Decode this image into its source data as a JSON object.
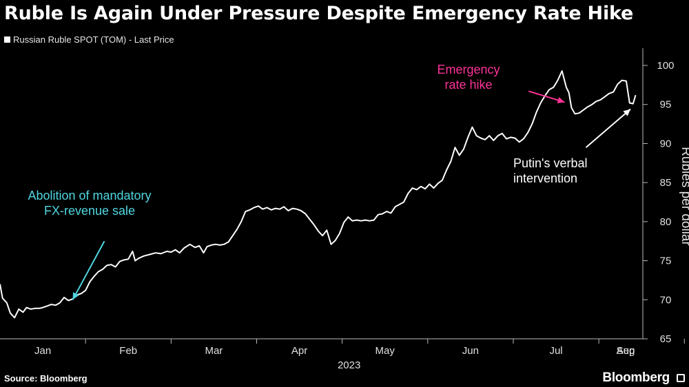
{
  "chart_data": {
    "type": "line",
    "title": "Ruble Is Again Under Pressure Despite Emergency Rate Hike",
    "series": [
      {
        "name": "Russian Ruble SPOT (TOM) - Last Price",
        "color": "#ffffff",
        "points": [
          [
            0.0,
            72.0
          ],
          [
            0.03,
            70.2
          ],
          [
            0.08,
            69.6
          ],
          [
            0.12,
            68.3
          ],
          [
            0.17,
            67.7
          ],
          [
            0.22,
            68.8
          ],
          [
            0.27,
            68.4
          ],
          [
            0.31,
            69.0
          ],
          [
            0.36,
            68.8
          ],
          [
            0.41,
            68.9
          ],
          [
            0.46,
            68.9
          ],
          [
            0.5,
            69.0
          ],
          [
            0.55,
            69.2
          ],
          [
            0.6,
            69.4
          ],
          [
            0.65,
            69.3
          ],
          [
            0.7,
            69.6
          ],
          [
            0.75,
            70.3
          ],
          [
            0.8,
            69.9
          ],
          [
            0.85,
            70.1
          ],
          [
            0.9,
            70.6
          ],
          [
            0.95,
            70.8
          ],
          [
            1.0,
            71.2
          ],
          [
            1.05,
            72.3
          ],
          [
            1.1,
            73.0
          ],
          [
            1.15,
            73.6
          ],
          [
            1.2,
            73.9
          ],
          [
            1.25,
            74.4
          ],
          [
            1.3,
            74.5
          ],
          [
            1.35,
            74.2
          ],
          [
            1.4,
            74.9
          ],
          [
            1.45,
            75.1
          ],
          [
            1.5,
            75.2
          ],
          [
            1.55,
            76.2
          ],
          [
            1.58,
            75.0
          ],
          [
            1.62,
            75.3
          ],
          [
            1.68,
            75.6
          ],
          [
            1.75,
            75.8
          ],
          [
            1.82,
            76.0
          ],
          [
            1.88,
            75.9
          ],
          [
            1.95,
            76.2
          ],
          [
            2.0,
            76.1
          ],
          [
            2.05,
            76.4
          ],
          [
            2.1,
            76.0
          ],
          [
            2.15,
            76.6
          ],
          [
            2.22,
            77.1
          ],
          [
            2.28,
            76.7
          ],
          [
            2.33,
            76.9
          ],
          [
            2.38,
            76.0
          ],
          [
            2.42,
            76.8
          ],
          [
            2.47,
            77.0
          ],
          [
            2.52,
            77.1
          ],
          [
            2.57,
            77.0
          ],
          [
            2.62,
            77.1
          ],
          [
            2.67,
            77.4
          ],
          [
            2.72,
            78.2
          ],
          [
            2.77,
            79.0
          ],
          [
            2.82,
            80.0
          ],
          [
            2.87,
            81.3
          ],
          [
            2.92,
            81.5
          ],
          [
            2.97,
            81.8
          ],
          [
            3.02,
            82.0
          ],
          [
            3.07,
            81.6
          ],
          [
            3.12,
            81.8
          ],
          [
            3.17,
            81.5
          ],
          [
            3.22,
            81.7
          ],
          [
            3.27,
            81.6
          ],
          [
            3.32,
            81.9
          ],
          [
            3.37,
            81.4
          ],
          [
            3.42,
            81.7
          ],
          [
            3.47,
            81.6
          ],
          [
            3.52,
            81.4
          ],
          [
            3.57,
            81.0
          ],
          [
            3.62,
            80.3
          ],
          [
            3.67,
            79.6
          ],
          [
            3.72,
            78.8
          ],
          [
            3.77,
            78.2
          ],
          [
            3.82,
            78.9
          ],
          [
            3.87,
            77.1
          ],
          [
            3.92,
            77.6
          ],
          [
            3.97,
            78.5
          ],
          [
            4.02,
            79.9
          ],
          [
            4.07,
            80.6
          ],
          [
            4.12,
            80.1
          ],
          [
            4.17,
            80.2
          ],
          [
            4.22,
            80.1
          ],
          [
            4.27,
            80.2
          ],
          [
            4.32,
            80.1
          ],
          [
            4.37,
            80.2
          ],
          [
            4.42,
            80.9
          ],
          [
            4.47,
            81.0
          ],
          [
            4.52,
            81.3
          ],
          [
            4.57,
            81.1
          ],
          [
            4.62,
            81.9
          ],
          [
            4.67,
            82.2
          ],
          [
            4.72,
            82.5
          ],
          [
            4.77,
            83.6
          ],
          [
            4.82,
            84.3
          ],
          [
            4.87,
            84.1
          ],
          [
            4.92,
            84.5
          ],
          [
            4.97,
            84.2
          ],
          [
            5.02,
            84.8
          ],
          [
            5.07,
            84.3
          ],
          [
            5.12,
            84.9
          ],
          [
            5.17,
            85.3
          ],
          [
            5.22,
            86.6
          ],
          [
            5.27,
            87.7
          ],
          [
            5.32,
            89.5
          ],
          [
            5.37,
            88.5
          ],
          [
            5.42,
            89.3
          ],
          [
            5.47,
            90.8
          ],
          [
            5.52,
            92.1
          ],
          [
            5.57,
            91.0
          ],
          [
            5.62,
            90.7
          ],
          [
            5.67,
            90.5
          ],
          [
            5.72,
            91.0
          ],
          [
            5.77,
            90.4
          ],
          [
            5.82,
            91.0
          ],
          [
            5.87,
            91.3
          ],
          [
            5.92,
            90.6
          ],
          [
            5.97,
            90.8
          ],
          [
            6.02,
            90.7
          ],
          [
            6.07,
            90.2
          ],
          [
            6.12,
            90.6
          ],
          [
            6.17,
            91.4
          ],
          [
            6.22,
            92.5
          ],
          [
            6.27,
            94.0
          ],
          [
            6.32,
            95.2
          ],
          [
            6.37,
            96.1
          ],
          [
            6.42,
            96.9
          ],
          [
            6.47,
            97.2
          ],
          [
            6.52,
            98.1
          ],
          [
            6.57,
            99.3
          ],
          [
            6.62,
            97.2
          ],
          [
            6.65,
            96.5
          ],
          [
            6.68,
            94.6
          ],
          [
            6.72,
            93.8
          ],
          [
            6.77,
            93.9
          ],
          [
            6.82,
            94.3
          ],
          [
            6.87,
            94.7
          ],
          [
            6.92,
            95.0
          ],
          [
            6.97,
            95.4
          ],
          [
            7.02,
            95.6
          ],
          [
            7.07,
            96.0
          ],
          [
            7.12,
            96.4
          ],
          [
            7.17,
            96.6
          ],
          [
            7.22,
            97.6
          ],
          [
            7.27,
            98.1
          ],
          [
            7.32,
            98.0
          ],
          [
            7.36,
            95.2
          ],
          [
            7.4,
            95.1
          ],
          [
            7.43,
            96.2
          ]
        ]
      }
    ],
    "x_tick_labels": [
      "Jan",
      "Feb",
      "Mar",
      "Apr",
      "May",
      "Jun",
      "Jul",
      "Aug",
      "Sep"
    ],
    "x_year_label": "2023",
    "xlim": [
      0,
      7.45
    ],
    "ylabel": "Rubles per dollar",
    "ylim": [
      65,
      101.5
    ],
    "y_ticks": [
      65,
      70,
      75,
      80,
      85,
      90,
      95,
      100
    ],
    "grid": false,
    "annotations": [
      {
        "lines": [
          "Abolition of mandatory",
          "FX-revenue sale"
        ],
        "color": "#4fd6e0",
        "target": [
          0.85,
          70.0
        ],
        "from": [
          1.22,
          77.5
        ]
      },
      {
        "lines": [
          "Emergency",
          "rate hike"
        ],
        "color": "#ff3399",
        "target": [
          6.6,
          95.3
        ],
        "from": [
          6.18,
          96.7
        ]
      },
      {
        "lines": [
          "Putin's verbal",
          "intervention"
        ],
        "color": "#ffffff",
        "target": [
          7.37,
          94.4
        ],
        "from": [
          6.85,
          89.5
        ]
      }
    ]
  },
  "legend": {
    "label": "Russian Ruble SPOT (TOM) - Last Price"
  },
  "footer": {
    "source": "Source: Bloomberg",
    "brand": "Bloomberg"
  }
}
